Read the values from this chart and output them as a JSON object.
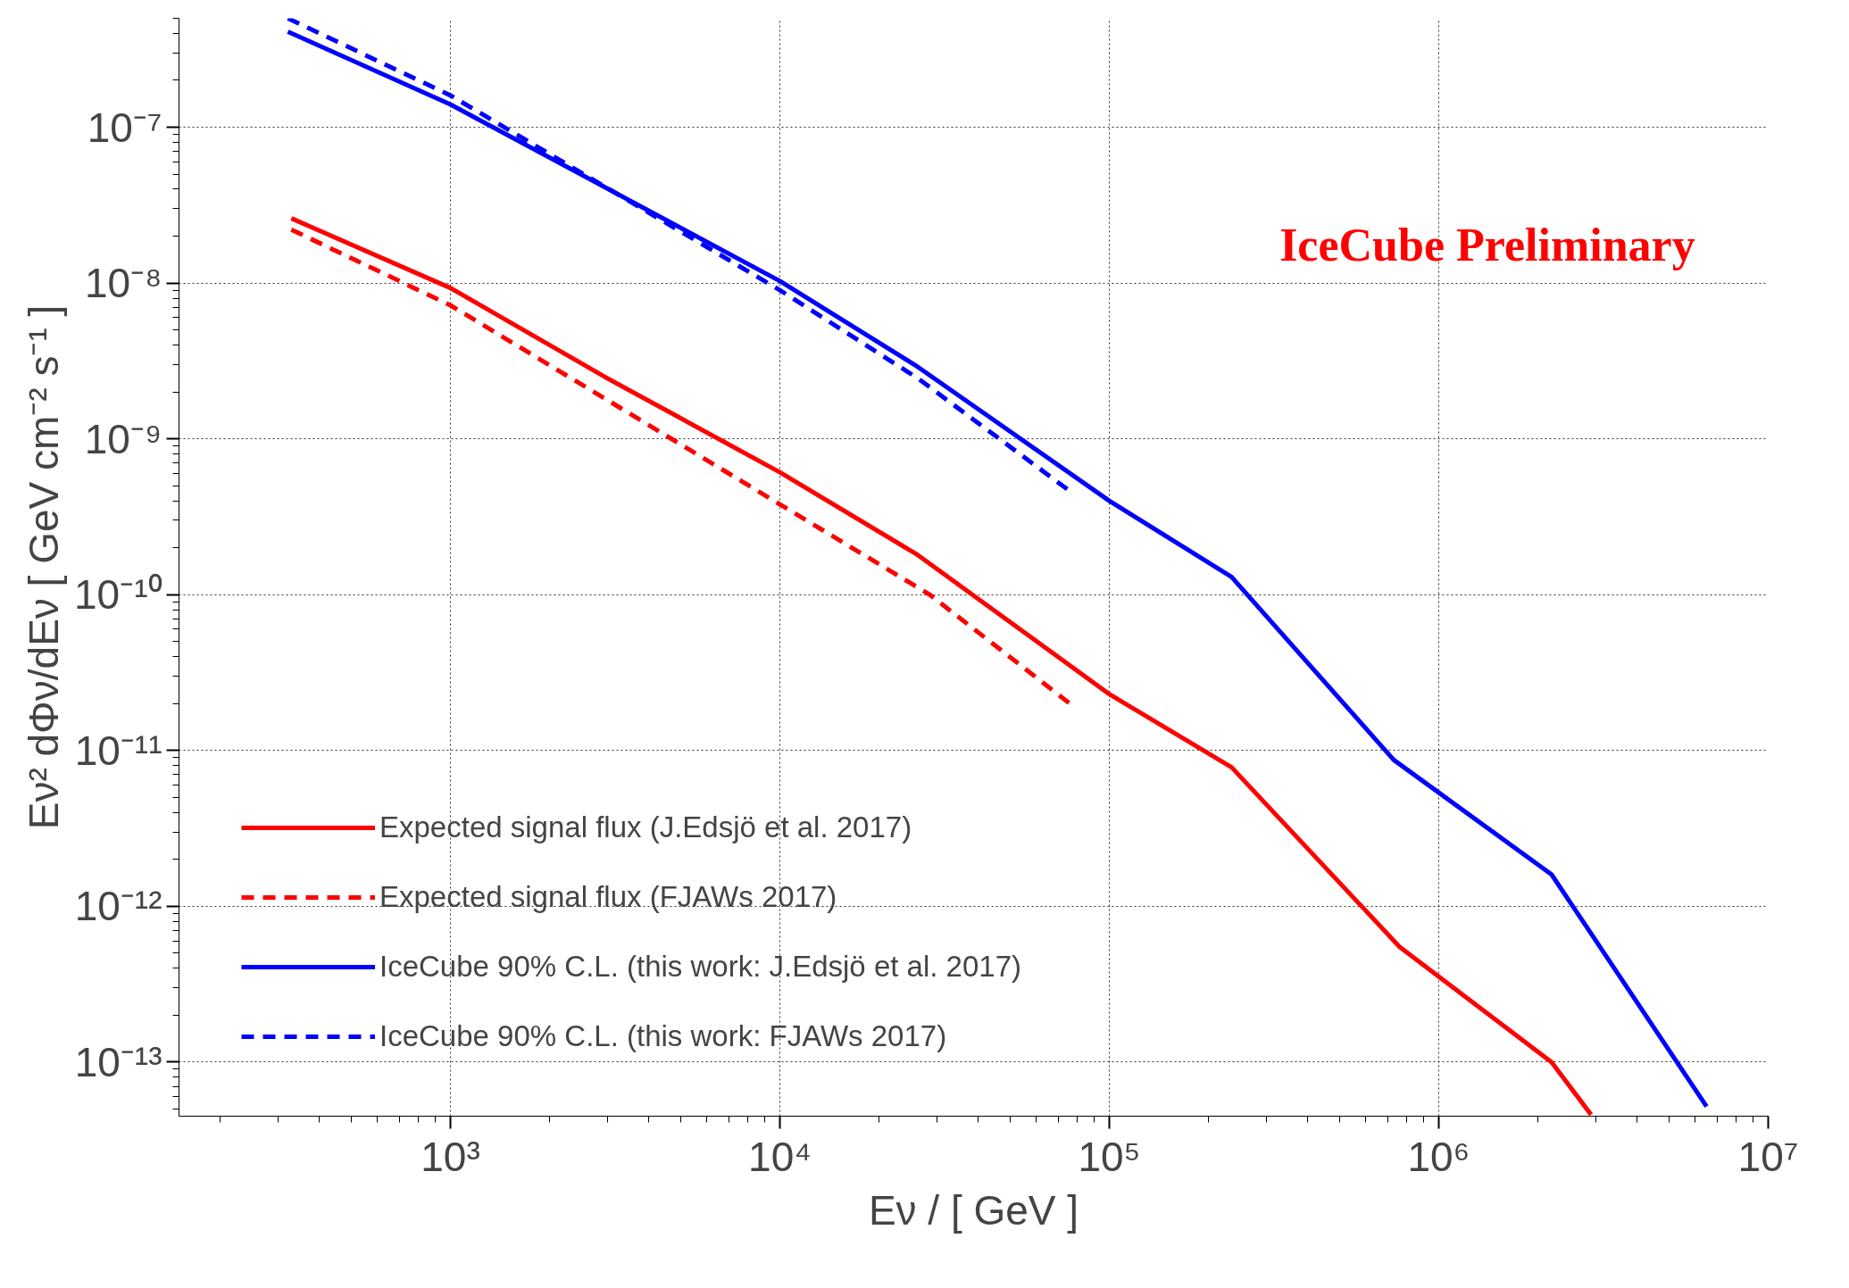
{
  "chart_data": {
    "type": "line",
    "log": "xy",
    "grid": true,
    "legend": "bottom left",
    "xlabel": "Eν / [ GeV ]",
    "ylabel": "Eν² dΦν/dEν [ GeV cm⁻² s⁻¹ ]",
    "xlim": [
      150,
      10000000
    ],
    "ylim": [
      4.5e-14,
      5e-07
    ],
    "xticks": [
      {
        "value": 1000,
        "label": "10³"
      },
      {
        "value": 10000,
        "label": "10⁴"
      },
      {
        "value": 100000,
        "label": "10⁵"
      },
      {
        "value": 1000000,
        "label": "10⁶"
      },
      {
        "value": 10000000,
        "label": "10⁷"
      }
    ],
    "yticks": [
      {
        "value": 1e-13,
        "label": "10⁻¹³"
      },
      {
        "value": 1e-12,
        "label": "10⁻¹²"
      },
      {
        "value": 1e-11,
        "label": "10⁻¹¹"
      },
      {
        "value": 1e-10,
        "label": "10⁻¹⁰"
      },
      {
        "value": 1e-09,
        "label": "10⁻⁹"
      },
      {
        "value": 1e-08,
        "label": "10⁻⁸"
      },
      {
        "value": 1e-07,
        "label": "10⁻⁷"
      }
    ],
    "annotations": [
      "IceCube Preliminary"
    ],
    "series": [
      {
        "name": "Expected signal flux (J.Edsjö et al. 2017)",
        "color": "#ff0000",
        "line_style": "solid",
        "x": [
          329,
          1000,
          2940,
          10000,
          26200,
          100000,
          235000,
          760000,
          2200000,
          2900000
        ],
        "values": [
          2.6e-08,
          9.3e-09,
          2.5e-09,
          6.1e-10,
          1.8e-10,
          2.3e-11,
          7.8e-12,
          5.5e-13,
          1e-13,
          4.6e-14
        ]
      },
      {
        "name": "Expected signal flux (FJAWs 2017)",
        "color": "#ff0000",
        "line_style": "dashed",
        "x": [
          329,
          1000,
          10000,
          28500,
          78300
        ],
        "values": [
          2.2e-08,
          7.2e-09,
          3.8e-10,
          1e-10,
          1.9e-11
        ]
      },
      {
        "name": "IceCube 90% C.L. (this work: J.Edsjö et al. 2017)",
        "color": "#0000ff",
        "line_style": "solid",
        "x": [
          321,
          1000,
          10000,
          26200,
          100000,
          235000,
          730000,
          2200000,
          6500000
        ],
        "values": [
          4.1e-07,
          1.4e-07,
          1.03e-08,
          2.9e-09,
          4e-10,
          1.3e-10,
          8.7e-12,
          1.6e-12,
          5.2e-14
        ]
      },
      {
        "name": "IceCube 90% C.L. (this work: FJAWs 2017)",
        "color": "#0000ff",
        "line_style": "dashed",
        "x": [
          321,
          1000,
          10000,
          26200,
          78300
        ],
        "values": [
          5e-07,
          1.6e-07,
          9e-09,
          2.45e-09,
          4.4e-10
        ]
      }
    ]
  }
}
